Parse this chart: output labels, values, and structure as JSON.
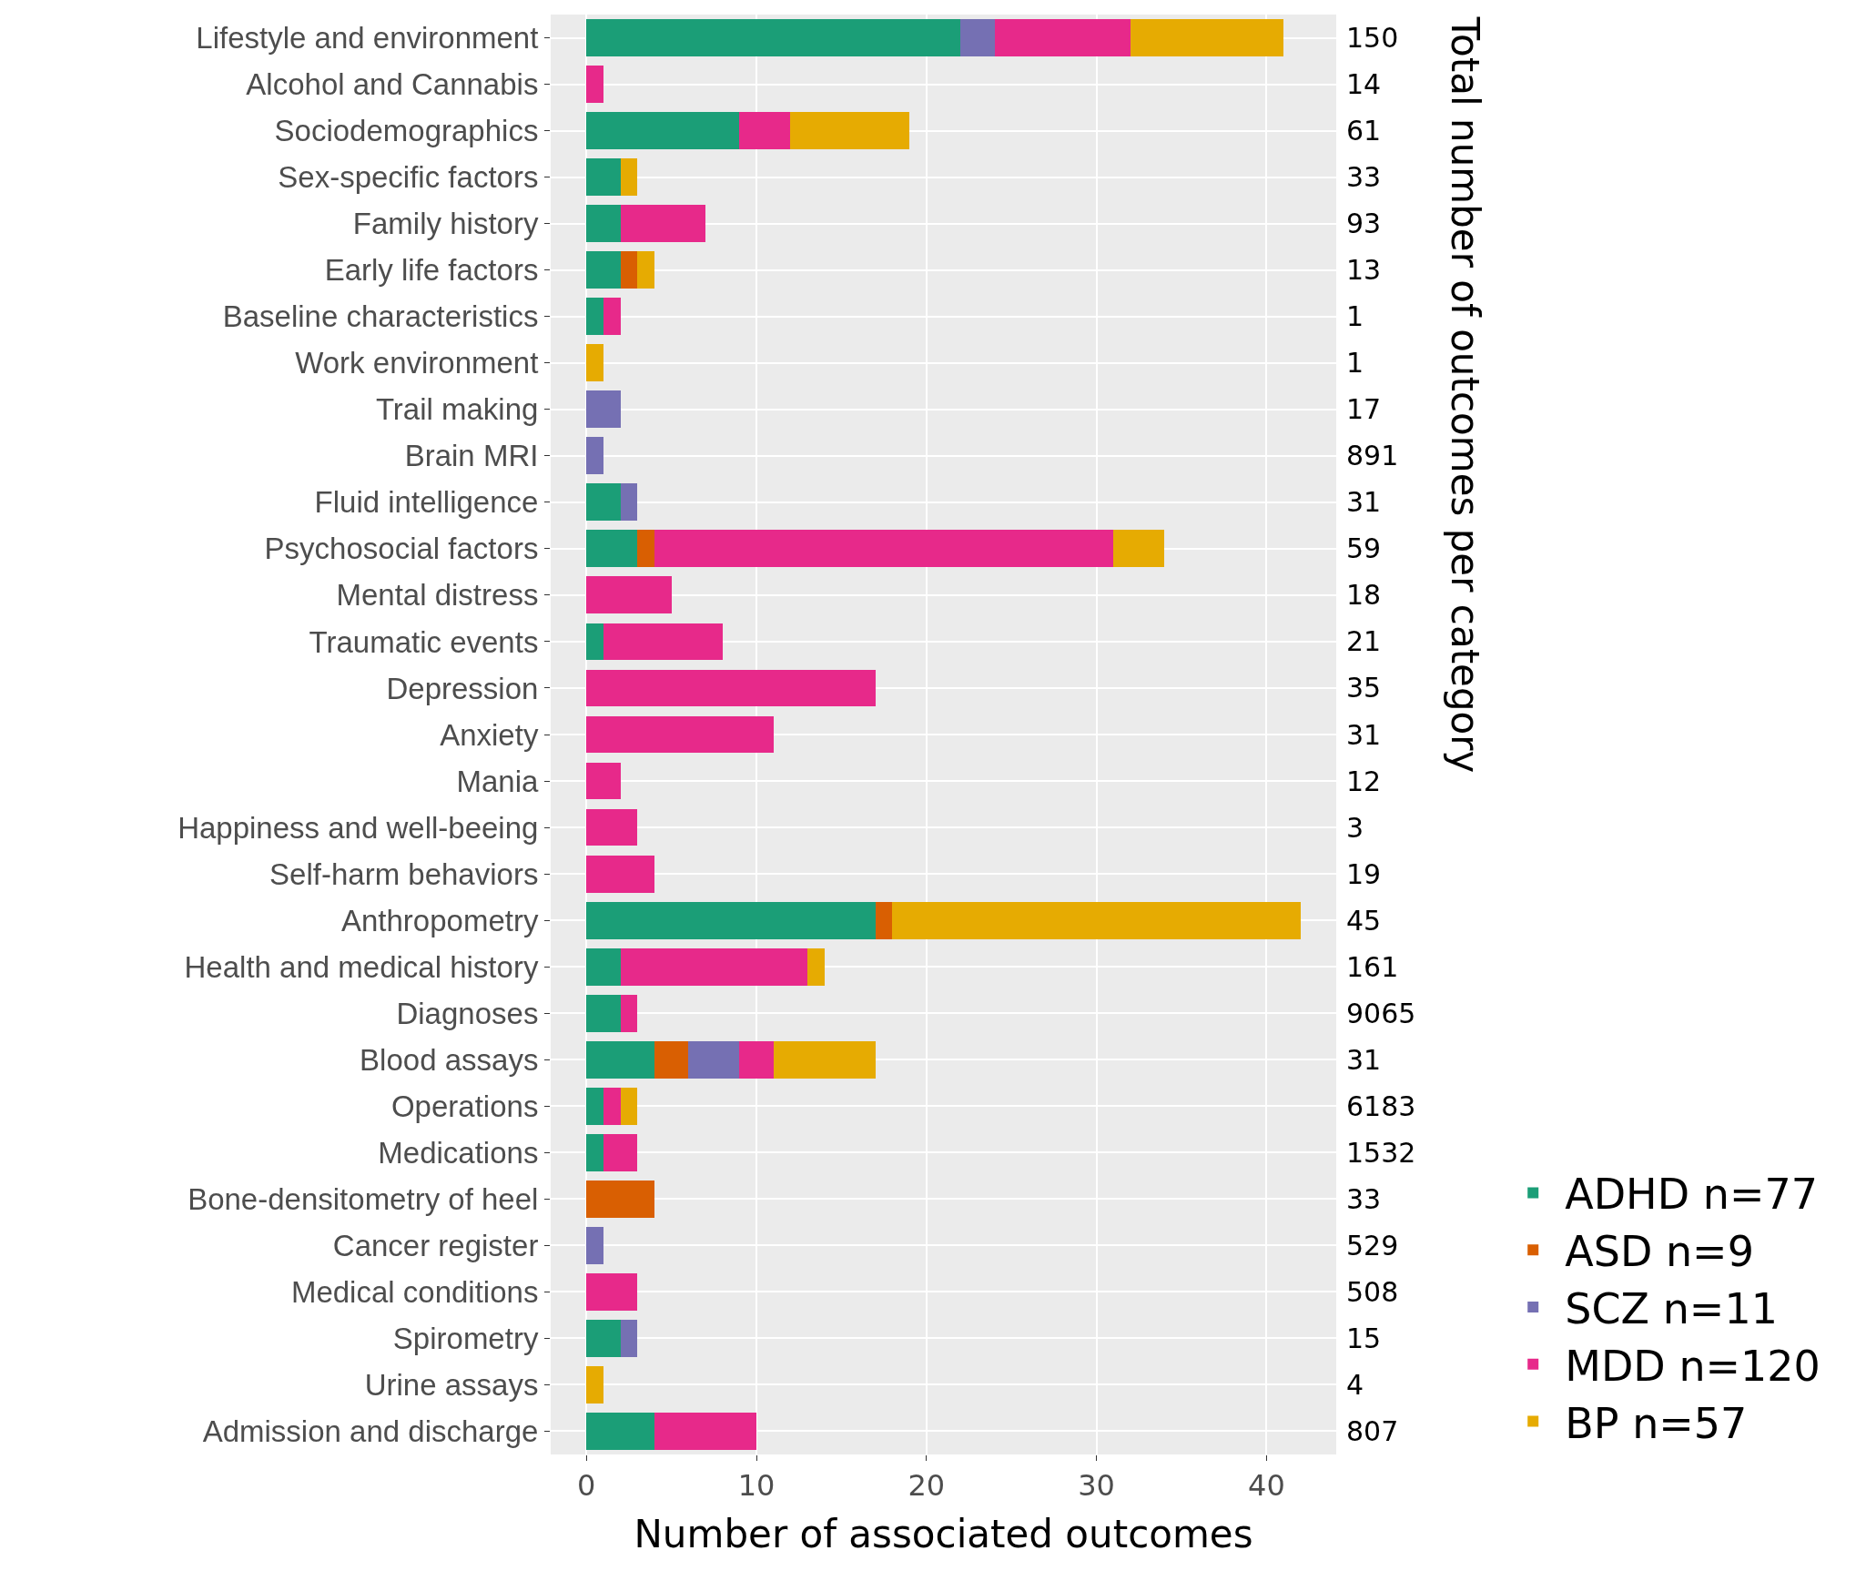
{
  "chart_data": {
    "type": "bar",
    "orientation": "horizontal",
    "stacked": true,
    "categories": [
      "Lifestyle and environment",
      "Alcohol and Cannabis",
      "Sociodemographics",
      "Sex-specific factors",
      "Family history",
      "Early life factors",
      "Baseline characteristics",
      "Work environment",
      "Trail making",
      "Brain MRI",
      "Fluid intelligence",
      "Psychosocial factors",
      "Mental distress",
      "Traumatic events",
      "Depression",
      "Anxiety",
      "Mania",
      "Happiness and well-beeing",
      "Self-harm behaviors",
      "Anthropometry",
      "Health and medical history",
      "Diagnoses",
      "Blood assays",
      "Operations",
      "Medications",
      "Bone-densitometry of heel",
      "Cancer register",
      "Medical conditions",
      "Spirometry",
      "Urine assays",
      "Admission and discharge"
    ],
    "series": [
      {
        "name": "ADHD n=77",
        "color": "#1b9e77",
        "values": [
          22,
          0,
          9,
          2,
          2,
          2,
          1,
          0,
          0,
          0,
          2,
          3,
          0,
          1,
          0,
          0,
          0,
          0,
          0,
          17,
          2,
          2,
          4,
          1,
          1,
          0,
          0,
          0,
          2,
          0,
          4
        ]
      },
      {
        "name": "ASD n=9",
        "color": "#d95f02",
        "values": [
          0,
          0,
          0,
          0,
          0,
          1,
          0,
          0,
          0,
          0,
          0,
          1,
          0,
          0,
          0,
          0,
          0,
          0,
          0,
          1,
          0,
          0,
          2,
          0,
          0,
          4,
          0,
          0,
          0,
          0,
          0
        ]
      },
      {
        "name": "SCZ n=11",
        "color": "#7570b3",
        "values": [
          2,
          0,
          0,
          0,
          0,
          0,
          0,
          0,
          2,
          1,
          1,
          0,
          0,
          0,
          0,
          0,
          0,
          0,
          0,
          0,
          0,
          0,
          3,
          0,
          0,
          0,
          1,
          0,
          1,
          0,
          0
        ]
      },
      {
        "name": "MDD n=120",
        "color": "#e7298a",
        "values": [
          8,
          1,
          3,
          0,
          5,
          0,
          1,
          0,
          0,
          0,
          0,
          27,
          5,
          7,
          17,
          11,
          2,
          3,
          4,
          0,
          11,
          1,
          2,
          1,
          2,
          0,
          0,
          3,
          0,
          0,
          6
        ]
      },
      {
        "name": "BP n=57",
        "color": "#e6ab02",
        "values": [
          9,
          0,
          7,
          1,
          0,
          1,
          0,
          1,
          0,
          0,
          0,
          3,
          0,
          0,
          0,
          0,
          0,
          0,
          0,
          24,
          1,
          0,
          6,
          1,
          0,
          0,
          0,
          0,
          0,
          1,
          0
        ]
      }
    ],
    "xlim": [
      -2.1,
      44.1
    ],
    "xticks": [
      0,
      10,
      20,
      30,
      40
    ],
    "xlabel": "Number of associated outcomes",
    "y2label": "Total number of outcomes per category",
    "annotations": [
      "150",
      "14",
      "61",
      "33",
      "93",
      "13",
      "1",
      "1",
      "17",
      "891",
      "31",
      "59",
      "18",
      "21",
      "35",
      "31",
      "12",
      "3",
      "19",
      "45",
      "161",
      "9065",
      "31",
      "6183",
      "1532",
      "33",
      "529",
      "508",
      "15",
      "4",
      "807"
    ],
    "grid": true,
    "legend": "bottom right"
  }
}
